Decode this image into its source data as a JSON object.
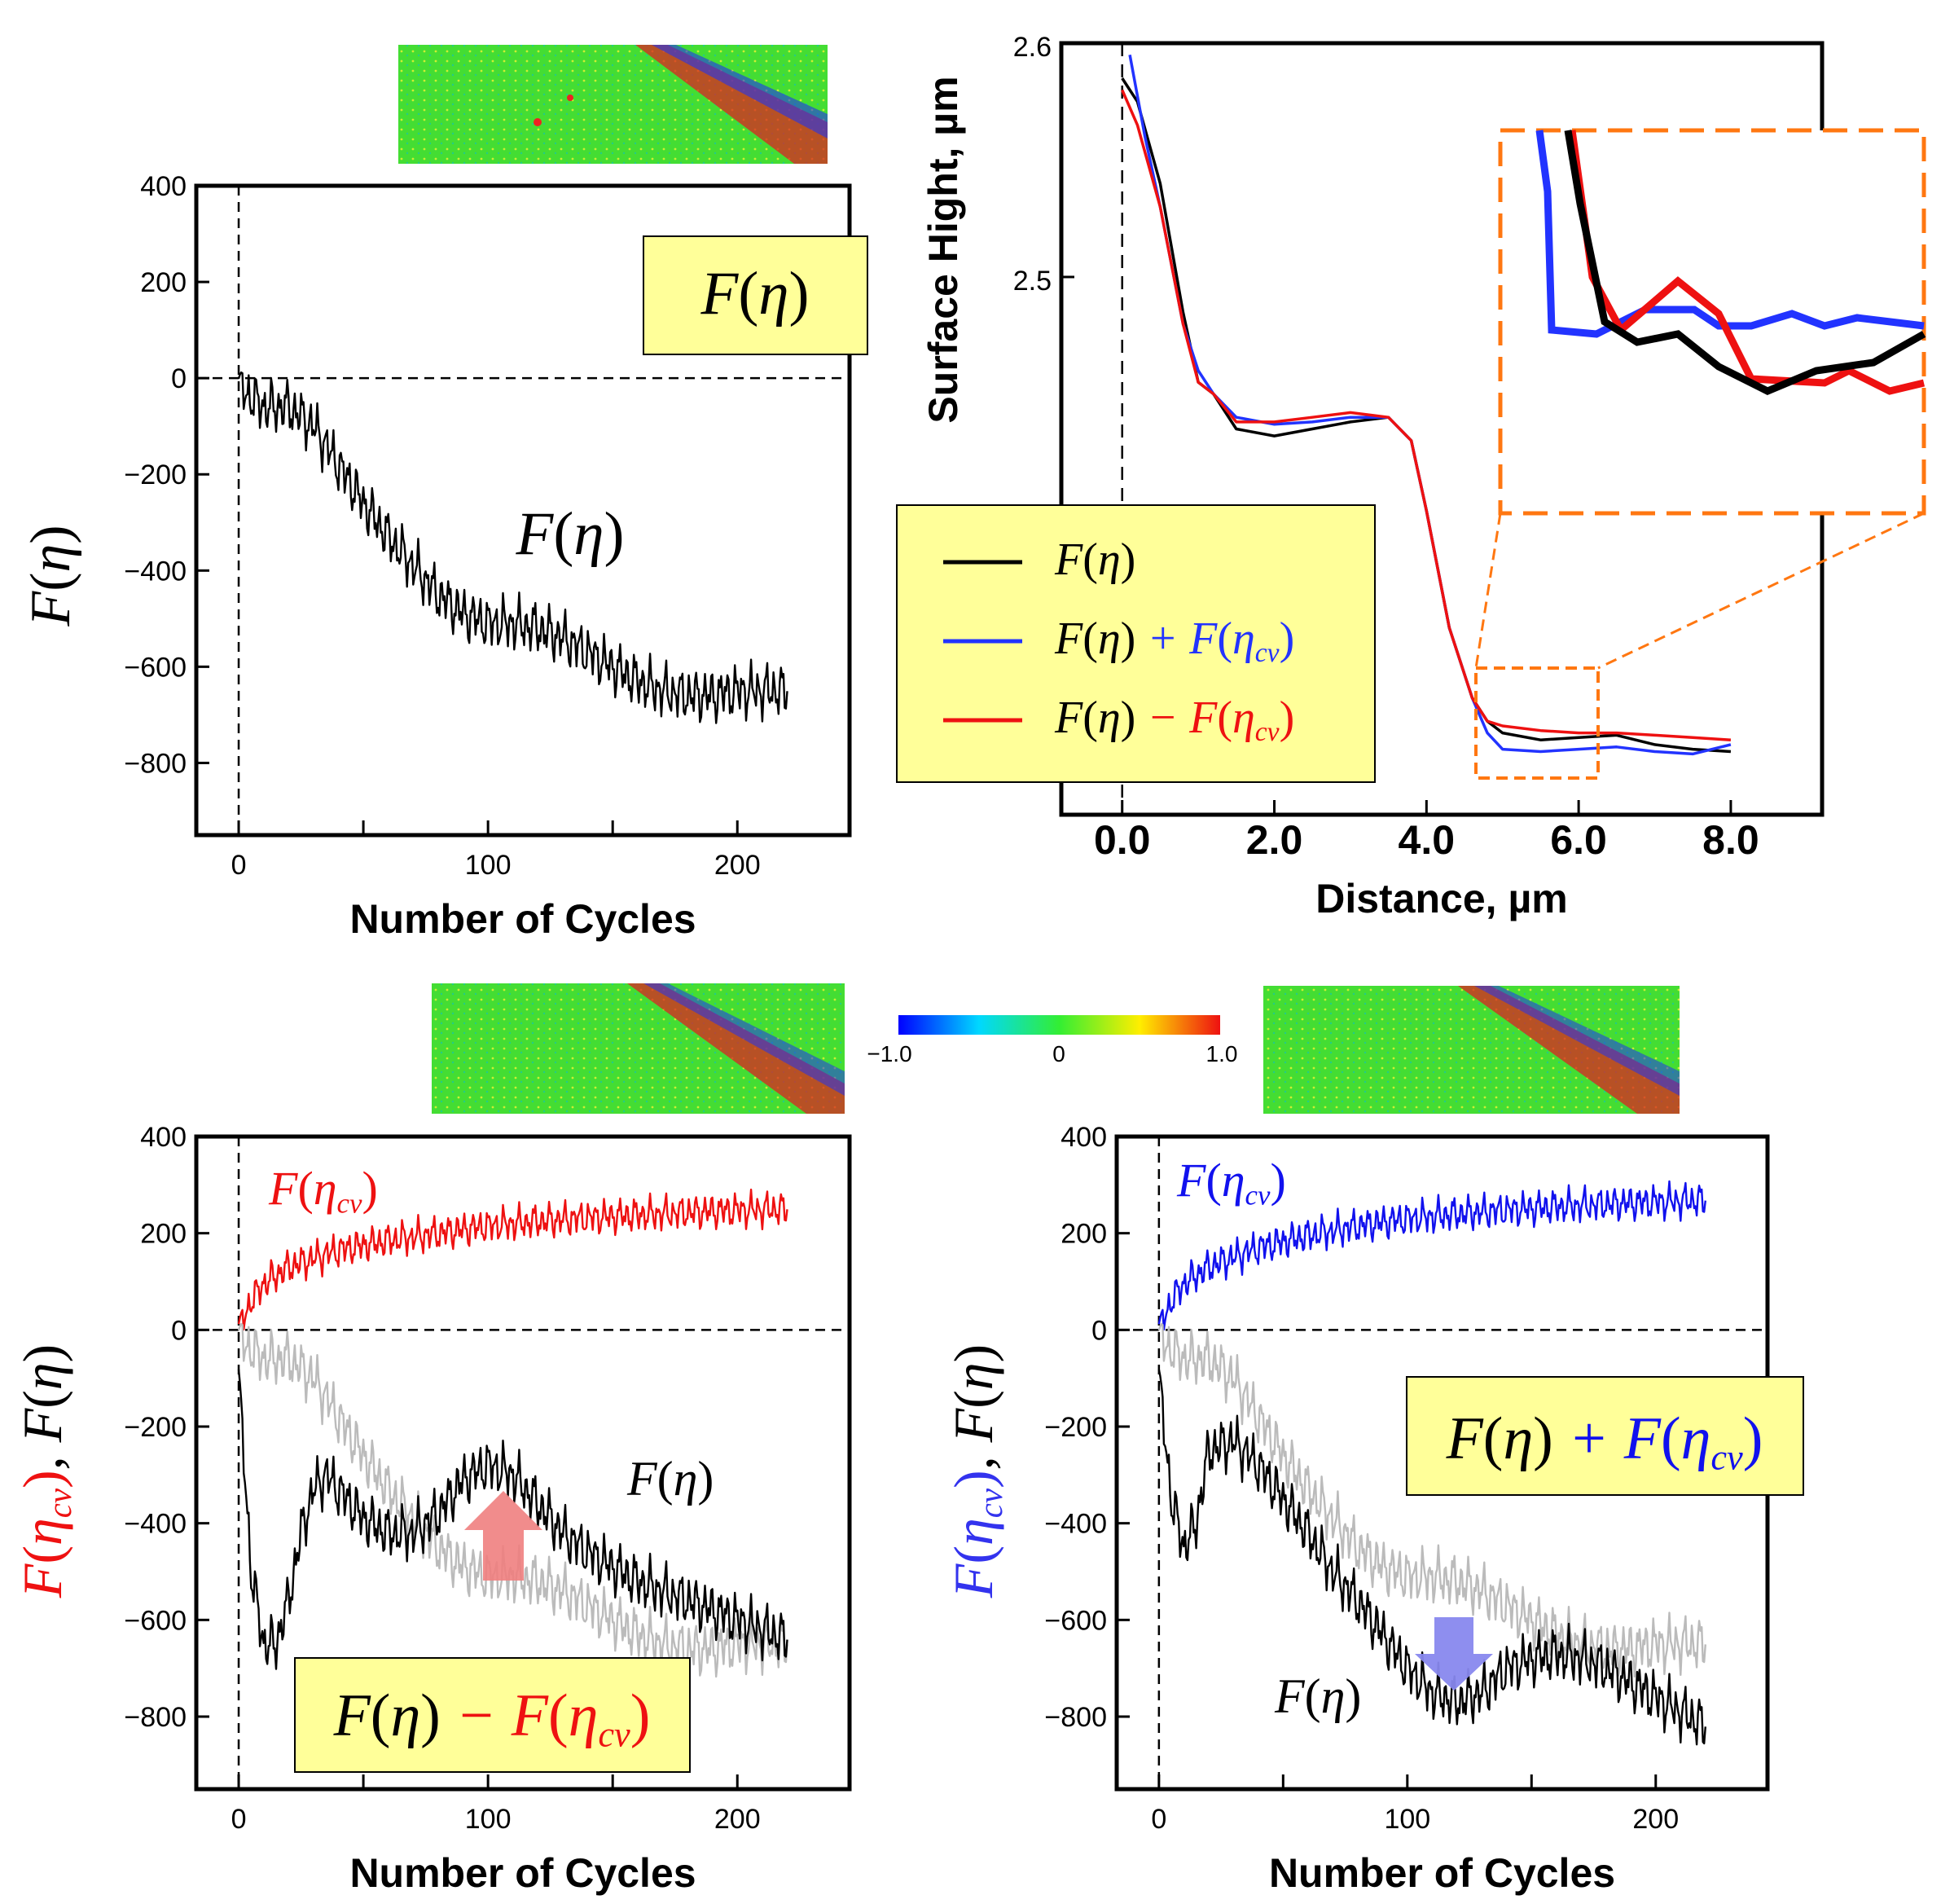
{
  "colorbar": {
    "ticks": [
      "−1.0",
      "0",
      "1.0"
    ]
  },
  "chart_data": [
    {
      "id": "top_left",
      "type": "line",
      "xlabel": "Number of Cycles",
      "ylabel": "F(η)",
      "xlim": [
        -17,
        245
      ],
      "ylim": [
        -950,
        400
      ],
      "xticks": [
        0,
        100,
        200
      ],
      "yticks": [
        400,
        200,
        0,
        -200,
        -400,
        -600,
        -800
      ],
      "box_label": "F(η)",
      "series": [
        {
          "name": "F(η)",
          "color": "#000000",
          "x": [
            0,
            10,
            20,
            30,
            40,
            50,
            60,
            70,
            80,
            90,
            100,
            110,
            120,
            130,
            140,
            150,
            160,
            170,
            180,
            190,
            200,
            210,
            220
          ],
          "y": [
            -20,
            -60,
            -60,
            -100,
            -180,
            -260,
            -330,
            -390,
            -450,
            -490,
            -510,
            -510,
            -520,
            -540,
            -570,
            -600,
            -630,
            -650,
            -660,
            -660,
            -650,
            -650,
            -650
          ],
          "oscillation": 70
        }
      ],
      "annotations": [
        "F(η)"
      ]
    },
    {
      "id": "top_right",
      "type": "line",
      "xlabel": "Distance, µm",
      "ylabel": "Surface Hight, µm",
      "xlim": [
        -0.8,
        9.2
      ],
      "ylim": [
        2.27,
        2.6
      ],
      "xticks": [
        "0.0",
        "2.0",
        "4.0",
        "6.0",
        "8.0"
      ],
      "yticks": [
        "2.6",
        "2.5"
      ],
      "legend": [
        "F(η)",
        "F(η) + F(η_cv)",
        "F(η) − F(η_cv)"
      ],
      "series": [
        {
          "name": "F(η)",
          "color": "#000000",
          "x": [
            0.0,
            0.2,
            0.5,
            0.8,
            1.0,
            1.2,
            1.5,
            2.0,
            2.5,
            3.0,
            3.5,
            3.8,
            4.0,
            4.3,
            4.6,
            4.8,
            5.0,
            5.5,
            6.0,
            6.5,
            7.0,
            7.5,
            8.0
          ],
          "y": [
            2.585,
            2.575,
            2.54,
            2.485,
            2.455,
            2.45,
            2.435,
            2.432,
            2.435,
            2.438,
            2.44,
            2.43,
            2.4,
            2.35,
            2.32,
            2.31,
            2.305,
            2.302,
            2.303,
            2.304,
            2.3,
            2.298,
            2.297
          ]
        },
        {
          "name": "F(η) + F(η_cv)",
          "color": "#2233ff",
          "x": [
            0.1,
            0.3,
            0.5,
            0.8,
            1.0,
            1.2,
            1.5,
            2.0,
            2.5,
            3.0,
            3.5,
            3.8,
            4.0,
            4.3,
            4.6,
            4.8,
            5.0,
            5.5,
            6.0,
            6.5,
            7.0,
            7.5,
            8.0
          ],
          "y": [
            2.595,
            2.56,
            2.53,
            2.48,
            2.46,
            2.45,
            2.44,
            2.437,
            2.438,
            2.44,
            2.44,
            2.43,
            2.4,
            2.35,
            2.32,
            2.305,
            2.298,
            2.297,
            2.298,
            2.299,
            2.297,
            2.296,
            2.3
          ]
        },
        {
          "name": "F(η) − F(η_cv)",
          "color": "#ee1111",
          "x": [
            0.0,
            0.2,
            0.5,
            0.8,
            1.0,
            1.2,
            1.5,
            2.0,
            2.5,
            3.0,
            3.5,
            3.8,
            4.0,
            4.3,
            4.6,
            4.8,
            5.0,
            5.5,
            6.0,
            6.5,
            7.0,
            7.5,
            8.0
          ],
          "y": [
            2.58,
            2.565,
            2.53,
            2.48,
            2.455,
            2.45,
            2.438,
            2.438,
            2.44,
            2.442,
            2.44,
            2.43,
            2.4,
            2.35,
            2.32,
            2.31,
            2.308,
            2.306,
            2.305,
            2.305,
            2.304,
            2.303,
            2.302
          ]
        }
      ]
    },
    {
      "id": "bottom_left",
      "type": "line",
      "xlabel": "Number of Cycles",
      "ylabel_parts": [
        "F(η_cv)",
        ", F(η)"
      ],
      "xlim": [
        -17,
        245
      ],
      "ylim": [
        -950,
        400
      ],
      "xticks": [
        0,
        100,
        200
      ],
      "yticks": [
        400,
        200,
        0,
        -200,
        -400,
        -600,
        -800
      ],
      "box_label": "F(η) − F(η_cv)",
      "series": [
        {
          "name": "F(η_cv)",
          "color": "#ee1111",
          "x": [
            0,
            5,
            10,
            20,
            40,
            60,
            80,
            100,
            120,
            140,
            160,
            180,
            200,
            220
          ],
          "y": [
            0,
            60,
            95,
            130,
            165,
            185,
            200,
            215,
            225,
            232,
            238,
            243,
            248,
            250
          ],
          "oscillation": 45
        },
        {
          "name": "F(η) reference",
          "color": "#bbbbbb",
          "x": [
            0,
            10,
            20,
            30,
            40,
            50,
            60,
            70,
            80,
            90,
            100,
            110,
            120,
            130,
            140,
            150,
            160,
            170,
            180,
            190,
            200,
            210,
            220
          ],
          "y": [
            -20,
            -60,
            -60,
            -100,
            -180,
            -260,
            -330,
            -390,
            -450,
            -490,
            -510,
            -510,
            -520,
            -540,
            -570,
            -600,
            -630,
            -650,
            -660,
            -660,
            -650,
            -650,
            -650
          ],
          "oscillation": 70
        },
        {
          "name": "F(η) − F(η_cv)",
          "color": "#000000",
          "x": [
            0,
            5,
            10,
            15,
            20,
            25,
            30,
            35,
            40,
            50,
            60,
            70,
            80,
            90,
            100,
            110,
            120,
            130,
            140,
            150,
            160,
            170,
            180,
            190,
            200,
            210,
            220
          ],
          "y": [
            -100,
            -500,
            -650,
            -650,
            -560,
            -420,
            -330,
            -300,
            -330,
            -390,
            -420,
            -420,
            -380,
            -310,
            -280,
            -300,
            -360,
            -420,
            -460,
            -490,
            -520,
            -540,
            -560,
            -580,
            -600,
            -620,
            -640
          ],
          "oscillation": 70
        }
      ],
      "annotations": [
        "F(η_cv)",
        "F(η)"
      ]
    },
    {
      "id": "bottom_right",
      "type": "line",
      "xlabel": "Number of Cycles",
      "ylabel_parts": [
        "F(η_cv)",
        ", F(η)"
      ],
      "xlim": [
        -17,
        245
      ],
      "ylim": [
        -950,
        400
      ],
      "xticks": [
        0,
        100,
        200
      ],
      "yticks": [
        400,
        200,
        0,
        -200,
        -400,
        -600,
        -800
      ],
      "box_label": "F(η) + F(η_cv)",
      "series": [
        {
          "name": "F(η_cv)",
          "color": "#1111ee",
          "x": [
            0,
            5,
            10,
            20,
            40,
            60,
            80,
            100,
            120,
            140,
            160,
            180,
            200,
            220
          ],
          "y": [
            0,
            60,
            95,
            130,
            170,
            195,
            215,
            230,
            240,
            248,
            255,
            260,
            265,
            268
          ],
          "oscillation": 45
        },
        {
          "name": "F(η) reference",
          "color": "#bbbbbb",
          "x": [
            0,
            10,
            20,
            30,
            40,
            50,
            60,
            70,
            80,
            90,
            100,
            110,
            120,
            130,
            140,
            150,
            160,
            170,
            180,
            190,
            200,
            210,
            220
          ],
          "y": [
            -20,
            -60,
            -60,
            -100,
            -180,
            -260,
            -330,
            -390,
            -450,
            -490,
            -510,
            -510,
            -520,
            -540,
            -570,
            -600,
            -630,
            -650,
            -660,
            -660,
            -650,
            -650,
            -650
          ],
          "oscillation": 70
        },
        {
          "name": "F(η) + F(η_cv)",
          "color": "#000000",
          "x": [
            0,
            5,
            10,
            15,
            20,
            30,
            40,
            50,
            60,
            70,
            80,
            90,
            100,
            110,
            120,
            130,
            140,
            150,
            160,
            170,
            180,
            190,
            200,
            210,
            220
          ],
          "y": [
            -100,
            -350,
            -450,
            -400,
            -250,
            -230,
            -280,
            -350,
            -420,
            -500,
            -560,
            -630,
            -700,
            -750,
            -770,
            -750,
            -700,
            -680,
            -670,
            -680,
            -700,
            -730,
            -760,
            -790,
            -820
          ],
          "oscillation": 70
        }
      ],
      "annotations": [
        "F(η_cv)",
        "F(η)"
      ]
    }
  ]
}
